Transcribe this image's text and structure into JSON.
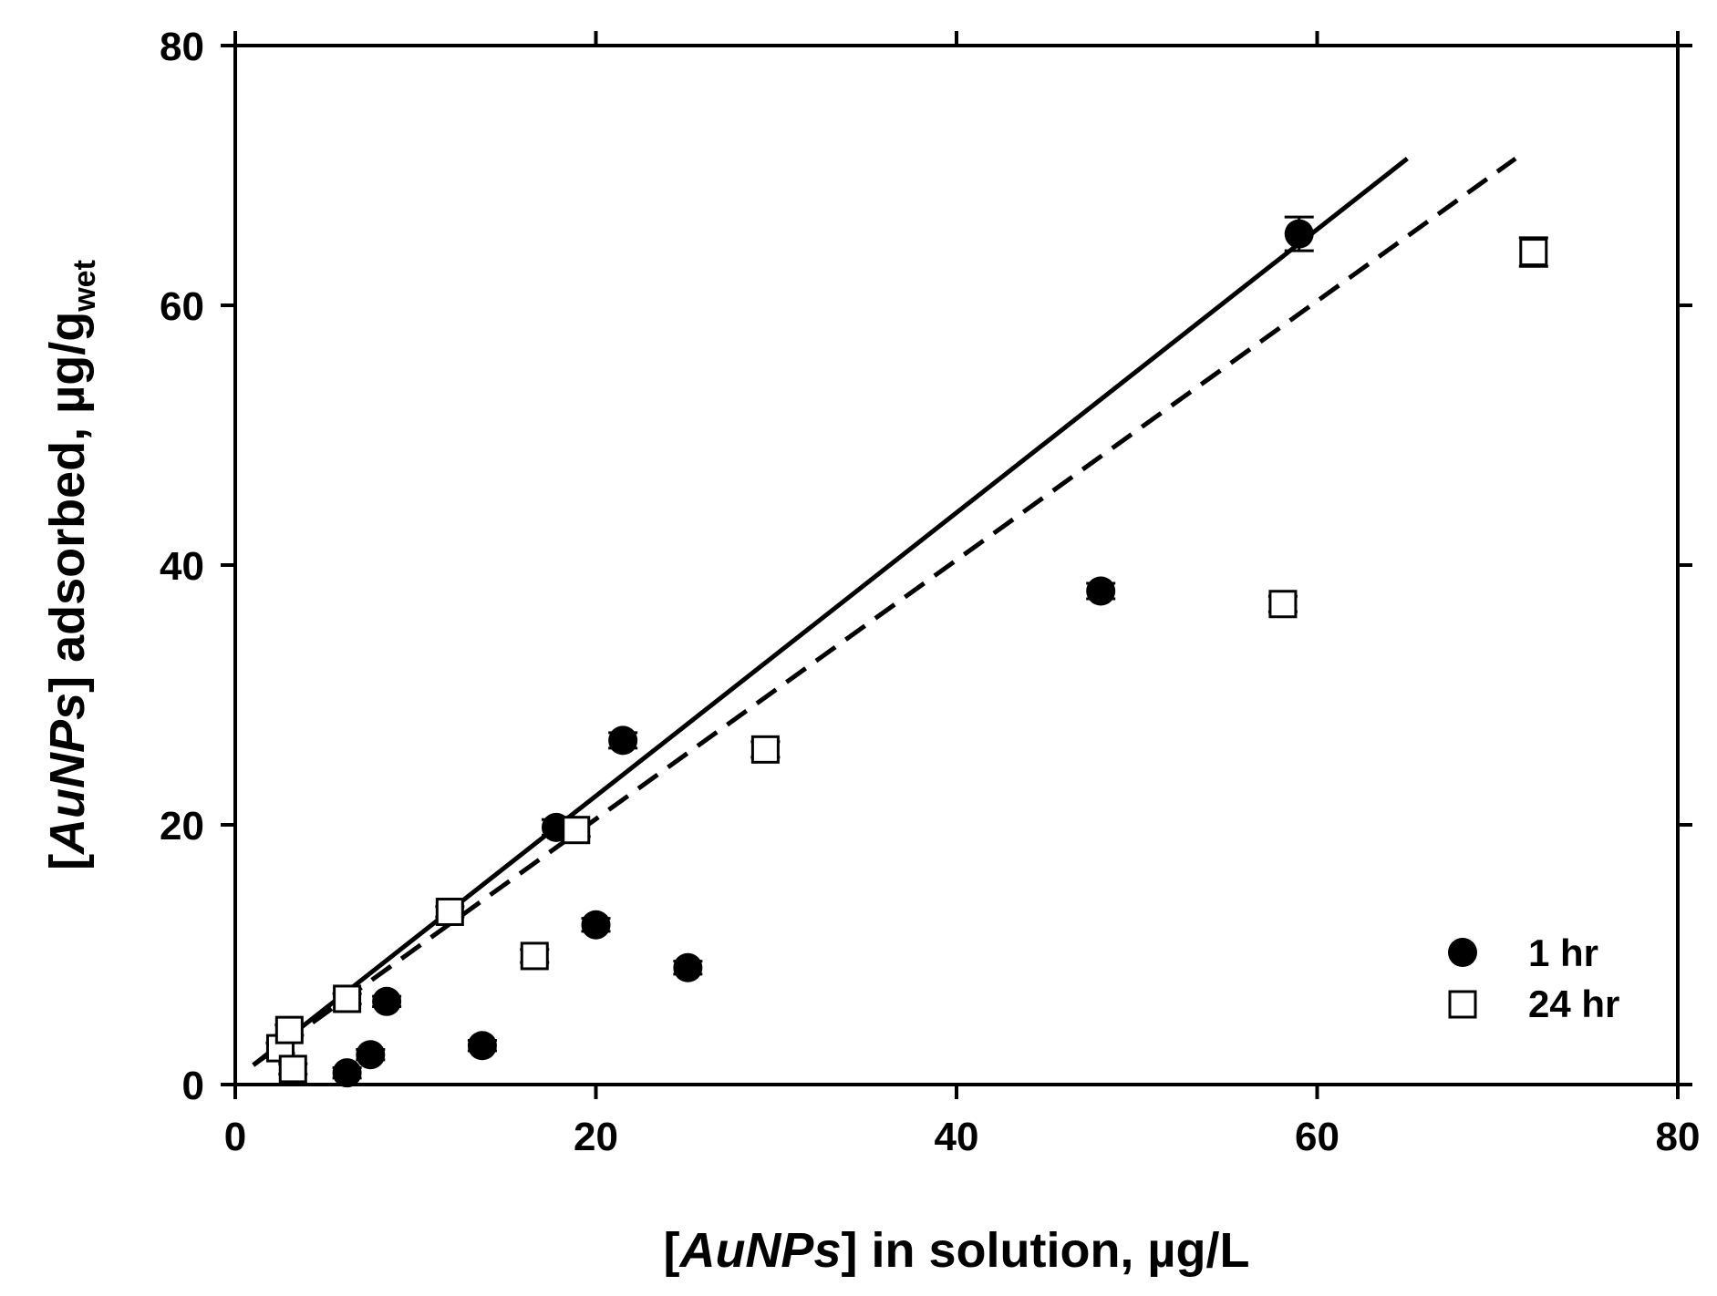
{
  "chart_data": {
    "type": "scatter",
    "xlabel": {
      "prefix": "[",
      "italic": "AuNPs",
      "suffix": "] in solution, µg/L"
    },
    "ylabel": {
      "prefix": "[",
      "italic": "AuNPs",
      "suffix": "] adsorbed, µg/g",
      "subscript": "wet"
    },
    "xlim": [
      0,
      80
    ],
    "ylim": [
      0,
      80
    ],
    "xticks": [
      0,
      20,
      40,
      60,
      80
    ],
    "yticks": [
      0,
      20,
      40,
      60,
      80
    ],
    "grid": false,
    "legend_position": "bottom-right",
    "series": [
      {
        "name": "1 hr",
        "marker": "filled-circle",
        "color": "#000000",
        "points": [
          {
            "x": 6.2,
            "y": 0.9,
            "err": 0.4
          },
          {
            "x": 7.5,
            "y": 2.3,
            "err": 0.4
          },
          {
            "x": 8.4,
            "y": 6.4,
            "err": 0.4
          },
          {
            "x": 13.7,
            "y": 3.0,
            "err": 0.4
          },
          {
            "x": 17.8,
            "y": 19.8,
            "err": 0.6
          },
          {
            "x": 20.0,
            "y": 12.3,
            "err": 0.5
          },
          {
            "x": 21.5,
            "y": 26.5,
            "err": 0.6
          },
          {
            "x": 25.1,
            "y": 9.0,
            "err": 0.5
          },
          {
            "x": 48.0,
            "y": 38.0,
            "err": 0.6
          },
          {
            "x": 59.0,
            "y": 65.5,
            "err": 1.3
          }
        ]
      },
      {
        "name": "24 hr",
        "marker": "open-square",
        "color": "#000000",
        "points": [
          {
            "x": 2.5,
            "y": 2.8,
            "err": 0.4
          },
          {
            "x": 3.0,
            "y": 4.2,
            "err": 0.4
          },
          {
            "x": 3.2,
            "y": 1.2,
            "err": 0.4
          },
          {
            "x": 6.2,
            "y": 6.6,
            "err": 0.4
          },
          {
            "x": 11.9,
            "y": 13.3,
            "err": 0.4
          },
          {
            "x": 16.6,
            "y": 9.9,
            "err": 0.5
          },
          {
            "x": 18.9,
            "y": 19.6,
            "err": 0.5
          },
          {
            "x": 29.4,
            "y": 25.8,
            "err": 0.6
          },
          {
            "x": 58.1,
            "y": 37.0,
            "err": 0.6
          },
          {
            "x": 72.0,
            "y": 64.1,
            "err": 1.1
          }
        ]
      }
    ],
    "fit_lines": [
      {
        "style": "solid",
        "x": [
          1.0,
          65.0
        ],
        "y": [
          1.5,
          71.3
        ]
      },
      {
        "style": "dashed",
        "x": [
          1.0,
          71.0
        ],
        "y": [
          1.5,
          71.3
        ]
      }
    ]
  }
}
